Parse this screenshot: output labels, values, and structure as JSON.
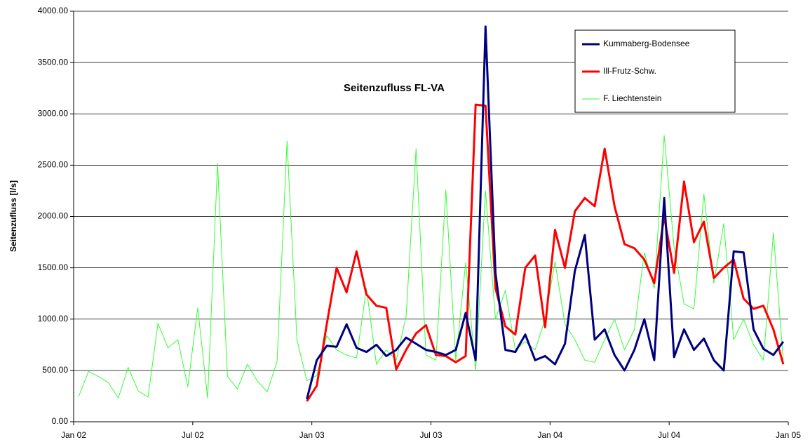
{
  "chart_data": {
    "type": "line",
    "title": "Seitenzufluss FL-VA",
    "y_label": "Seitenzufluss [l/s]",
    "x": [
      0.25,
      0.75,
      1.25,
      1.75,
      2.25,
      2.75,
      3.25,
      3.75,
      4.25,
      4.75,
      5.25,
      5.75,
      6.25,
      6.75,
      7.25,
      7.75,
      8.25,
      8.75,
      9.25,
      9.75,
      10.25,
      10.75,
      11.25,
      11.75,
      12.25,
      12.75,
      13.25,
      13.75,
      14.25,
      14.75,
      15.25,
      15.75,
      16.25,
      16.75,
      17.25,
      17.75,
      18.25,
      18.75,
      19.25,
      19.75,
      20.25,
      20.75,
      21.25,
      21.75,
      22.25,
      22.75,
      23.25,
      23.75,
      24.25,
      24.75,
      25.25,
      25.75,
      26.25,
      26.75,
      27.25,
      27.75,
      28.25,
      28.75,
      29.25,
      29.75,
      30.25,
      30.75,
      31.25,
      31.75,
      32.25,
      32.75,
      33.25,
      33.75,
      34.25,
      34.75,
      35.25,
      35.75
    ],
    "xlim": [
      0,
      36
    ],
    "xticks": [
      {
        "value": 0,
        "label": "Jan 02"
      },
      {
        "value": 6,
        "label": "Jul 02"
      },
      {
        "value": 12,
        "label": "Jan 03"
      },
      {
        "value": 18,
        "label": "Jul 03"
      },
      {
        "value": 24,
        "label": "Jan 04"
      },
      {
        "value": 30,
        "label": "Jul 04"
      },
      {
        "value": 36,
        "label": "Jan 05"
      }
    ],
    "ylim": [
      0,
      4000
    ],
    "yticks": [
      {
        "value": 0,
        "label": "0.00"
      },
      {
        "value": 500,
        "label": "500.00"
      },
      {
        "value": 1000,
        "label": "1000.00"
      },
      {
        "value": 1500,
        "label": "1500.00"
      },
      {
        "value": 2000,
        "label": "2000.00"
      },
      {
        "value": 2500,
        "label": "2500.00"
      },
      {
        "value": 3000,
        "label": "3000.00"
      },
      {
        "value": 3500,
        "label": "3500.00"
      },
      {
        "value": 4000,
        "label": "4000.00"
      }
    ],
    "grid": true,
    "legend": "top-right",
    "series": [
      {
        "name": "Kummaberg-Bodensee",
        "color": "#00007f",
        "values": [
          null,
          null,
          null,
          null,
          null,
          null,
          null,
          null,
          null,
          null,
          null,
          null,
          null,
          null,
          null,
          null,
          null,
          null,
          null,
          null,
          null,
          null,
          null,
          220,
          600,
          740,
          730,
          950,
          720,
          680,
          750,
          640,
          700,
          820,
          760,
          700,
          680,
          650,
          700,
          1060,
          600,
          3850,
          1450,
          700,
          680,
          850,
          600,
          640,
          560,
          760,
          1470,
          1820,
          800,
          900,
          650,
          500,
          700,
          1000,
          600,
          2180,
          630,
          900,
          700,
          810,
          600,
          500,
          1660,
          1650,
          900,
          710,
          650,
          780
        ]
      },
      {
        "name": "Ill-Frutz-Schw.",
        "color": "#ff0000",
        "values": [
          null,
          null,
          null,
          null,
          null,
          null,
          null,
          null,
          null,
          null,
          null,
          null,
          null,
          null,
          null,
          null,
          null,
          null,
          null,
          null,
          null,
          null,
          null,
          200,
          350,
          950,
          1500,
          1260,
          1660,
          1240,
          1130,
          1110,
          510,
          700,
          860,
          940,
          650,
          640,
          580,
          640,
          3090,
          3080,
          1300,
          930,
          850,
          1500,
          1620,
          920,
          1870,
          1500,
          2050,
          2180,
          2100,
          2660,
          2100,
          1730,
          1690,
          1580,
          1350,
          2000,
          1450,
          2340,
          1750,
          1950,
          1400,
          1500,
          1580,
          1200,
          1100,
          1130,
          900,
          560
        ]
      },
      {
        "name": "F. Liechtenstein",
        "color": "#33ff33",
        "values": [
          245,
          490,
          440,
          380,
          230,
          530,
          300,
          240,
          960,
          720,
          800,
          340,
          1110,
          230,
          2516,
          440,
          320,
          560,
          400,
          290,
          590,
          2735,
          800,
          400,
          450,
          840,
          700,
          650,
          620,
          1300,
          560,
          700,
          600,
          1030,
          2660,
          650,
          600,
          2260,
          600,
          1550,
          500,
          2250,
          1000,
          1280,
          700,
          780,
          700,
          1000,
          1560,
          950,
          800,
          600,
          580,
          800,
          1000,
          700,
          900,
          1650,
          1300,
          2790,
          1700,
          1150,
          1100,
          2220,
          1350,
          1930,
          800,
          1000,
          750,
          600,
          1840,
          600
        ]
      }
    ]
  }
}
